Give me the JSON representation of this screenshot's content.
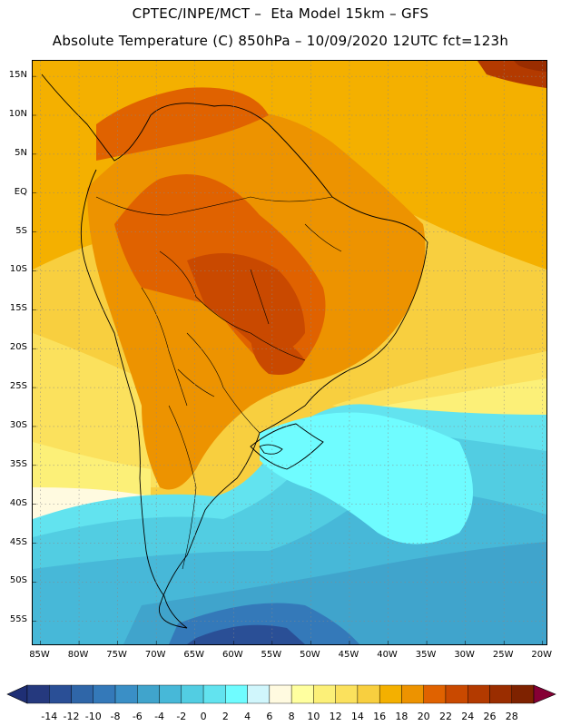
{
  "header": {
    "line1": "CPTEC/INPE/MCT –  Eta Model 15km – GFS",
    "line2": "Absolute Temperature (C) 850hPa – 10/09/2020 12UTC fct=123h"
  },
  "map": {
    "lat_ticks": [
      "15N",
      "10N",
      "5N",
      "EQ",
      "5S",
      "10S",
      "15S",
      "20S",
      "25S",
      "30S",
      "35S",
      "40S",
      "45S",
      "50S",
      "55S"
    ],
    "lon_ticks": [
      "85W",
      "80W",
      "75W",
      "70W",
      "65W",
      "60W",
      "55W",
      "50W",
      "45W",
      "40W",
      "35W",
      "30W",
      "25W",
      "20W"
    ],
    "lat_range": [
      17,
      -58
    ],
    "lon_range": [
      -86,
      -19.5
    ],
    "grid": true
  },
  "colorbar": {
    "unit": "C",
    "labels": [
      "-14",
      "-12",
      "-10",
      "-8",
      "-6",
      "-4",
      "-2",
      "0",
      "2",
      "4",
      "6",
      "8",
      "10",
      "12",
      "14",
      "16",
      "18",
      "20",
      "22",
      "24",
      "26",
      "28"
    ],
    "colors": [
      "#25397e",
      "#2a4f96",
      "#2f66a8",
      "#3479b9",
      "#3a8fc6",
      "#40a4cc",
      "#47b8d8",
      "#52cde2",
      "#62e3ef",
      "#6ffcff",
      "#d0f6fc",
      "#fffae0",
      "#ffff9f",
      "#fcf078",
      "#fbe15d",
      "#f8cf3f",
      "#f4b000",
      "#ed9300",
      "#e06200",
      "#c94900",
      "#b33a00",
      "#9a2d00",
      "#7e2200",
      "#860035"
    ],
    "under_color": "#1f2f75",
    "over_color": "#860035"
  }
}
